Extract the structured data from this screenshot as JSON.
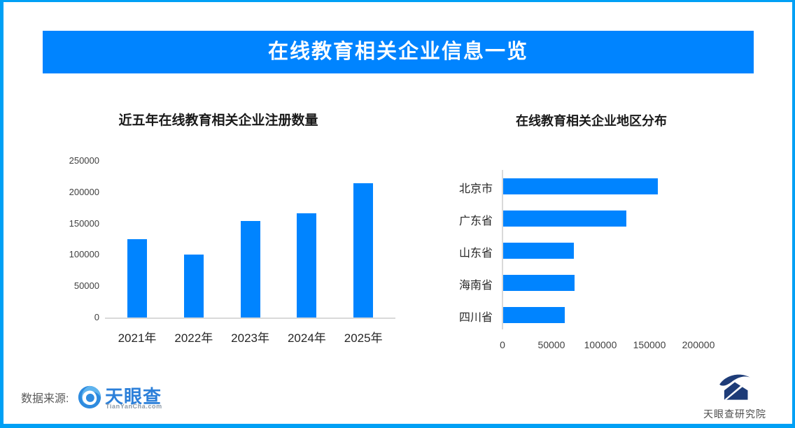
{
  "page": {
    "border_color": "#00A0F5",
    "background_color": "#FFFFFF"
  },
  "banner": {
    "title": "在线教育相关企业信息一览",
    "bg_color": "#0084FF",
    "text_color": "#FFFFFF"
  },
  "footer": {
    "source_label": "数据来源:",
    "tianyancha_logo": {
      "name": "天眼查",
      "subtext": "TianYanCha.com",
      "name_color": "#2B7FD9"
    },
    "research_logo": {
      "name": "天眼查研究院",
      "emblem_color": "#1E3C78"
    }
  },
  "chart_data": [
    {
      "type": "bar",
      "orientation": "vertical",
      "title": "近五年在线教育相关企业注册数量",
      "categories": [
        "2021年",
        "2022年",
        "2023年",
        "2024年",
        "2025年"
      ],
      "values": [
        125000,
        101000,
        154000,
        166000,
        214000
      ],
      "ylim": [
        0,
        250000
      ],
      "yticks": [
        0,
        50000,
        100000,
        150000,
        200000,
        250000
      ],
      "xlabel": "",
      "ylabel": "",
      "grid": false,
      "legend": "none",
      "bar_color": "#0084FF"
    },
    {
      "type": "bar",
      "orientation": "horizontal",
      "title": "在线教育相关企业地区分布",
      "categories": [
        "北京市",
        "广东省",
        "山东省",
        "海南省",
        "四川省"
      ],
      "values": [
        158000,
        126000,
        72000,
        73000,
        63000
      ],
      "xlim": [
        0,
        235000
      ],
      "xticks": [
        0,
        50000,
        100000,
        150000,
        200000
      ],
      "xlabel": "",
      "ylabel": "",
      "grid": false,
      "legend": "none",
      "bar_color": "#0084FF"
    }
  ]
}
